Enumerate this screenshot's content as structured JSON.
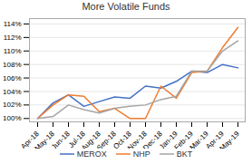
{
  "chart_data": {
    "type": "line",
    "title": "More Volatile Funds",
    "categories": [
      "Apr-18",
      "May-18",
      "Jun-18",
      "Jul-18",
      "Aug-18",
      "Sep-18",
      "Oct-18",
      "Nov-18",
      "Dec-18",
      "Jan-19",
      "Feb-19",
      "Mar-19",
      "Apr-19",
      "May-19"
    ],
    "series": [
      {
        "name": "MEROX",
        "color": "#4472C4",
        "values": [
          100.0,
          102.3,
          103.5,
          101.8,
          102.5,
          103.2,
          103.0,
          104.8,
          104.5,
          105.5,
          107.0,
          106.8,
          108.0,
          107.5
        ]
      },
      {
        "name": "NHP",
        "color": "#ED7D31",
        "values": [
          100.0,
          102.0,
          103.5,
          103.3,
          101.0,
          101.5,
          100.0,
          100.0,
          104.8,
          103.0,
          106.8,
          107.0,
          110.5,
          113.5
        ]
      },
      {
        "name": "BKT",
        "color": "#A5A5A5",
        "values": [
          100.0,
          100.3,
          102.0,
          101.3,
          100.8,
          101.5,
          101.8,
          102.0,
          102.8,
          103.3,
          107.0,
          107.0,
          110.0,
          111.5
        ]
      }
    ],
    "ylim": [
      99.5,
      114.8
    ],
    "yticks": [
      {
        "value": 100,
        "label": "100%"
      },
      {
        "value": 102,
        "label": "102%"
      },
      {
        "value": 104,
        "label": "104%"
      },
      {
        "value": 106,
        "label": "106%"
      },
      {
        "value": 108,
        "label": "108%"
      },
      {
        "value": 110,
        "label": "110%"
      },
      {
        "value": 112,
        "label": "112%"
      },
      {
        "value": 114,
        "label": "114%"
      }
    ],
    "grid": true,
    "legend": "bottom"
  }
}
